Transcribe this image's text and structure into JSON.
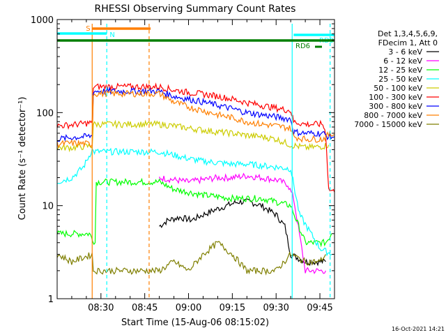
{
  "chart_data": {
    "type": "line",
    "title": "RHESSI Observing Summary Count Rates",
    "xlabel": "Start Time (15-Aug-06 08:15:02)",
    "ylabel": "Count Rate (s⁻¹ detector⁻¹)",
    "yscale": "log",
    "ylim": [
      1,
      1000
    ],
    "xlim": [
      "08:15",
      "09:50"
    ],
    "x_ticks": [
      "08:30",
      "08:45",
      "09:00",
      "09:15",
      "09:30",
      "09:45"
    ],
    "y_ticks": [
      "1",
      "10",
      "100",
      "1000"
    ],
    "grid": false,
    "legend_position": "right",
    "legend_header": [
      "Det 1,3,4,5,6,9,",
      "FDecim 1, Att 0"
    ],
    "timestamp": "16-Oct-2021 14:21",
    "flag_bars": [
      {
        "label": "S",
        "color": "#ff7f00",
        "start": "08:27",
        "end": "08:47"
      },
      {
        "label": "N",
        "color": "#00ffff",
        "start": "08:15",
        "end": "08:32"
      },
      {
        "label": "RD0",
        "color": "#00ffff",
        "start": "09:36",
        "end": "09:50"
      },
      {
        "label": "RD6",
        "color": "#007f00",
        "start": "08:15",
        "end": "09:50"
      }
    ],
    "vlines": [
      {
        "time": "08:27",
        "color": "#ff7f00",
        "style": "solid"
      },
      {
        "time": "08:32",
        "color": "#00ffff",
        "style": "dashed"
      },
      {
        "time": "08:46.5",
        "color": "#ff7f00",
        "style": "dashed"
      },
      {
        "time": "09:35.5",
        "color": "#00ffff",
        "style": "solid"
      },
      {
        "time": "09:48.5",
        "color": "#00ffff",
        "style": "dashed"
      }
    ],
    "series": [
      {
        "name": "3 - 6 keV",
        "color": "#000000",
        "points": [
          [
            "08:50",
            6
          ],
          [
            "08:53",
            7
          ],
          [
            "08:57",
            7.5
          ],
          [
            "09:01",
            7
          ],
          [
            "09:05",
            8
          ],
          [
            "09:09",
            9
          ],
          [
            "09:13",
            10
          ],
          [
            "09:17",
            11
          ],
          [
            "09:21",
            11
          ],
          [
            "09:25",
            10
          ],
          [
            "09:30",
            8
          ],
          [
            "09:33",
            6
          ],
          [
            "09:35",
            3
          ],
          [
            "09:40",
            2.5
          ],
          [
            "09:47",
            2.5
          ]
        ]
      },
      {
        "name": "6 - 12 keV",
        "color": "#ff00ff",
        "points": [
          [
            "08:50",
            20
          ],
          [
            "08:55",
            19
          ],
          [
            "09:00",
            18
          ],
          [
            "09:05",
            19
          ],
          [
            "09:10",
            20
          ],
          [
            "09:15",
            20
          ],
          [
            "09:20",
            21
          ],
          [
            "09:25",
            20
          ],
          [
            "09:30",
            19
          ],
          [
            "09:34",
            17
          ],
          [
            "09:36",
            12
          ],
          [
            "09:40",
            2
          ],
          [
            "09:47",
            2
          ]
        ]
      },
      {
        "name": "12 - 25 keV",
        "color": "#00ff00",
        "points": [
          [
            "08:15",
            5
          ],
          [
            "08:22",
            5
          ],
          [
            "08:26",
            5
          ],
          [
            "08:28",
            4
          ],
          [
            "08:50",
            18
          ],
          [
            "08:55",
            15
          ],
          [
            "09:00",
            14
          ],
          [
            "09:05",
            13
          ],
          [
            "09:10",
            12.5
          ],
          [
            "09:15",
            12
          ],
          [
            "09:20",
            12
          ],
          [
            "09:25",
            12
          ],
          [
            "09:30",
            11
          ],
          [
            "09:35",
            10
          ],
          [
            "09:40",
            4
          ],
          [
            "09:45",
            4
          ],
          [
            "09:47",
            4
          ],
          [
            "09:49",
            5
          ]
        ]
      },
      {
        "name": "25 - 50 keV",
        "color": "#00ffff",
        "points": [
          [
            "08:15",
            18
          ],
          [
            "08:20",
            20
          ],
          [
            "08:24",
            26
          ],
          [
            "08:27",
            40
          ],
          [
            "08:50",
            38
          ],
          [
            "08:55",
            35
          ],
          [
            "09:00",
            32
          ],
          [
            "09:05",
            30
          ],
          [
            "09:10",
            29
          ],
          [
            "09:15",
            28
          ],
          [
            "09:20",
            28
          ],
          [
            "09:25",
            27
          ],
          [
            "09:30",
            26
          ],
          [
            "09:35",
            25
          ],
          [
            "09:38",
            8
          ],
          [
            "09:45",
            3.5
          ],
          [
            "09:49",
            3
          ]
        ]
      },
      {
        "name": "50 - 100 keV",
        "color": "#cccc00",
        "points": [
          [
            "08:15",
            42
          ],
          [
            "08:20",
            42
          ],
          [
            "08:27",
            44
          ],
          [
            "08:50",
            75
          ],
          [
            "08:55",
            72
          ],
          [
            "09:00",
            68
          ],
          [
            "09:05",
            65
          ],
          [
            "09:10",
            62
          ],
          [
            "09:15",
            60
          ],
          [
            "09:20",
            57
          ],
          [
            "09:25",
            55
          ],
          [
            "09:30",
            52
          ],
          [
            "09:35",
            45
          ],
          [
            "09:40",
            42
          ],
          [
            "09:45",
            43
          ],
          [
            "09:48",
            45
          ]
        ]
      },
      {
        "name": "100 - 300 keV",
        "color": "#ff0000",
        "points": [
          [
            "08:15",
            72
          ],
          [
            "08:20",
            74
          ],
          [
            "08:27",
            78
          ],
          [
            "08:50",
            190
          ],
          [
            "08:55",
            175
          ],
          [
            "09:00",
            165
          ],
          [
            "09:05",
            158
          ],
          [
            "09:10",
            150
          ],
          [
            "09:15",
            140
          ],
          [
            "09:20",
            128
          ],
          [
            "09:25",
            120
          ],
          [
            "09:30",
            112
          ],
          [
            "09:35",
            105
          ],
          [
            "09:36",
            80
          ],
          [
            "09:40",
            75
          ],
          [
            "09:46",
            75
          ],
          [
            "09:47",
            60
          ],
          [
            "09:48",
            15
          ],
          [
            "09:50",
            14
          ]
        ]
      },
      {
        "name": "300 - 800 keV",
        "color": "#0000ff",
        "points": [
          [
            "08:15",
            52
          ],
          [
            "08:20",
            54
          ],
          [
            "08:27",
            56
          ],
          [
            "08:50",
            170
          ],
          [
            "08:55",
            150
          ],
          [
            "09:00",
            140
          ],
          [
            "09:05",
            130
          ],
          [
            "09:10",
            120
          ],
          [
            "09:15",
            110
          ],
          [
            "09:20",
            100
          ],
          [
            "09:25",
            95
          ],
          [
            "09:30",
            90
          ],
          [
            "09:35",
            85
          ],
          [
            "09:36",
            62
          ],
          [
            "09:40",
            60
          ],
          [
            "09:46",
            60
          ],
          [
            "09:48",
            55
          ],
          [
            "09:50",
            55
          ]
        ]
      },
      {
        "name": "800 - 7000 keV",
        "color": "#ff7f00",
        "points": [
          [
            "08:15",
            46
          ],
          [
            "08:20",
            47
          ],
          [
            "08:27",
            46
          ],
          [
            "08:50",
            160
          ],
          [
            "08:55",
            130
          ],
          [
            "09:00",
            115
          ],
          [
            "09:05",
            105
          ],
          [
            "09:10",
            95
          ],
          [
            "09:15",
            88
          ],
          [
            "09:20",
            80
          ],
          [
            "09:25",
            75
          ],
          [
            "09:30",
            72
          ],
          [
            "09:35",
            68
          ],
          [
            "09:36",
            55
          ],
          [
            "09:40",
            52
          ],
          [
            "09:46",
            52
          ],
          [
            "09:48",
            58
          ],
          [
            "09:50",
            58
          ]
        ]
      },
      {
        "name": "7000 - 15000 keV",
        "color": "#7f7f00",
        "points": [
          [
            "08:15",
            3
          ],
          [
            "08:20",
            2.5
          ],
          [
            "08:27",
            3
          ],
          [
            "08:50",
            2
          ],
          [
            "08:55",
            2.5
          ],
          [
            "09:00",
            2
          ],
          [
            "09:05",
            3
          ],
          [
            "09:10",
            4
          ],
          [
            "09:15",
            3
          ],
          [
            "09:20",
            2
          ],
          [
            "09:25",
            2
          ],
          [
            "09:30",
            2
          ],
          [
            "09:35",
            3
          ],
          [
            "09:40",
            2.5
          ],
          [
            "09:45",
            2.5
          ],
          [
            "09:47",
            3
          ]
        ]
      }
    ]
  }
}
